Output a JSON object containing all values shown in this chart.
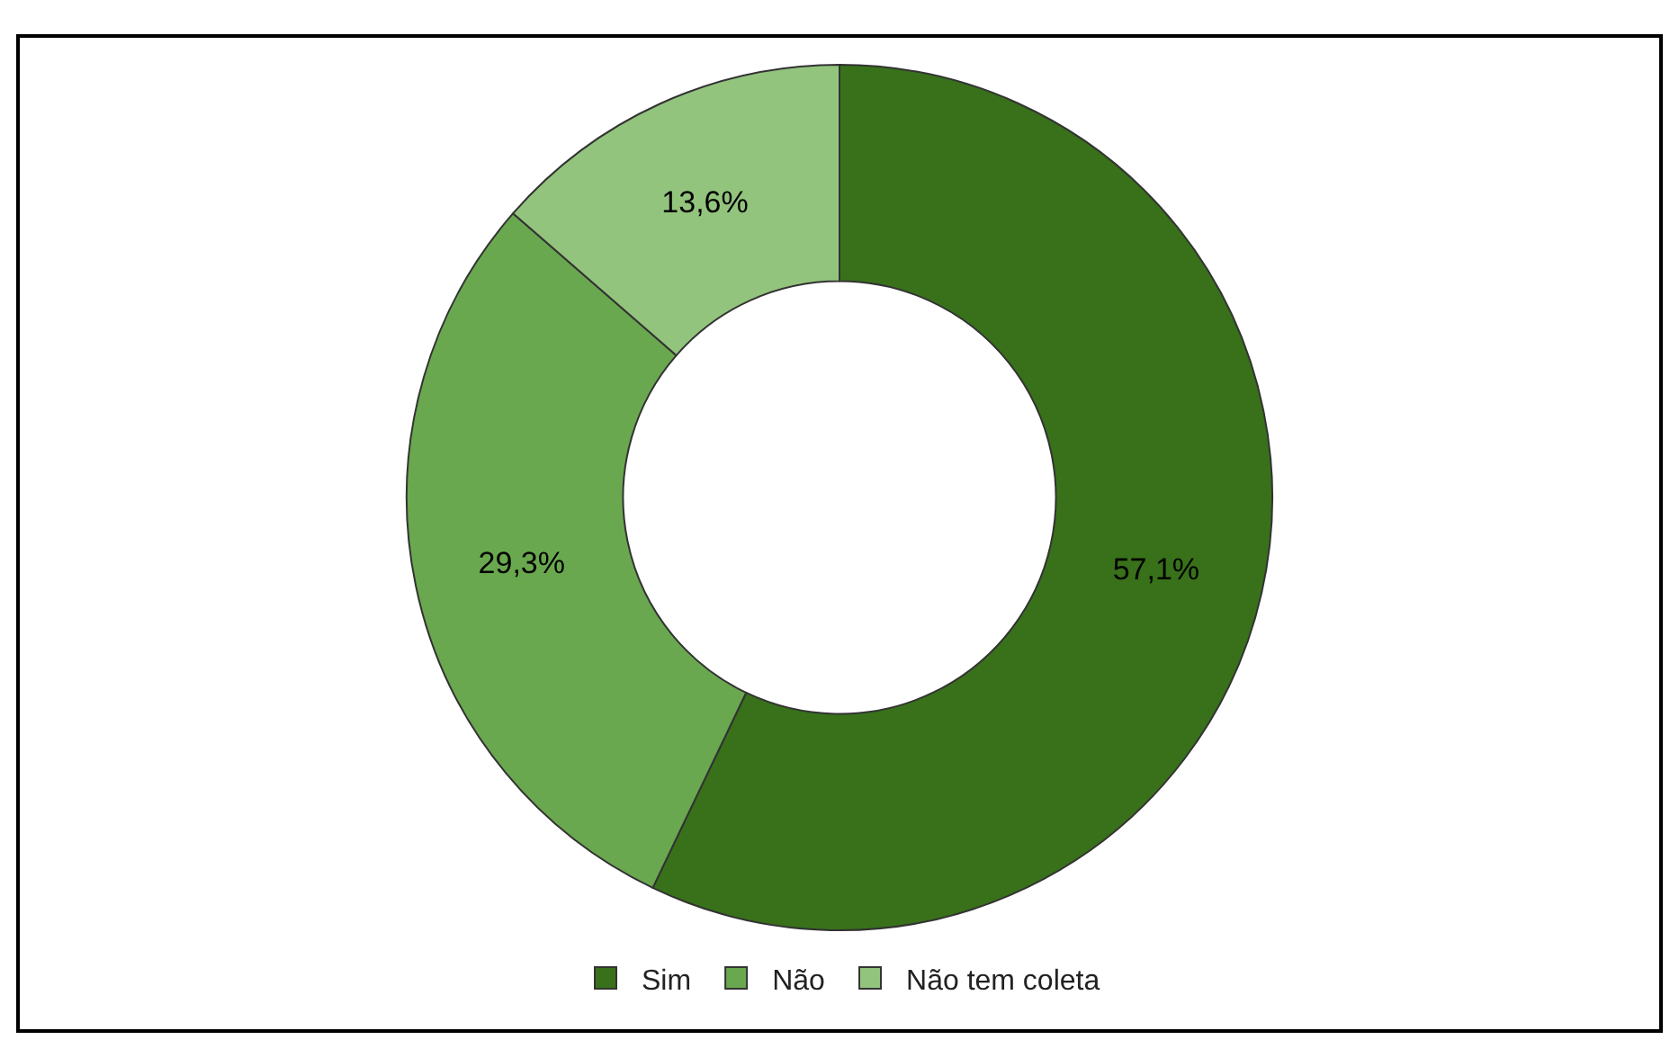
{
  "chart_data": {
    "type": "donut",
    "categories": [
      "Sim",
      "Não",
      "Não tem coleta"
    ],
    "values": [
      57.1,
      29.3,
      13.6
    ],
    "colors": [
      "#38711a",
      "#6aa84f",
      "#93c47d"
    ],
    "value_labels": [
      "57,1%",
      "29,3%",
      "13,6%"
    ],
    "legend": "bottom"
  }
}
